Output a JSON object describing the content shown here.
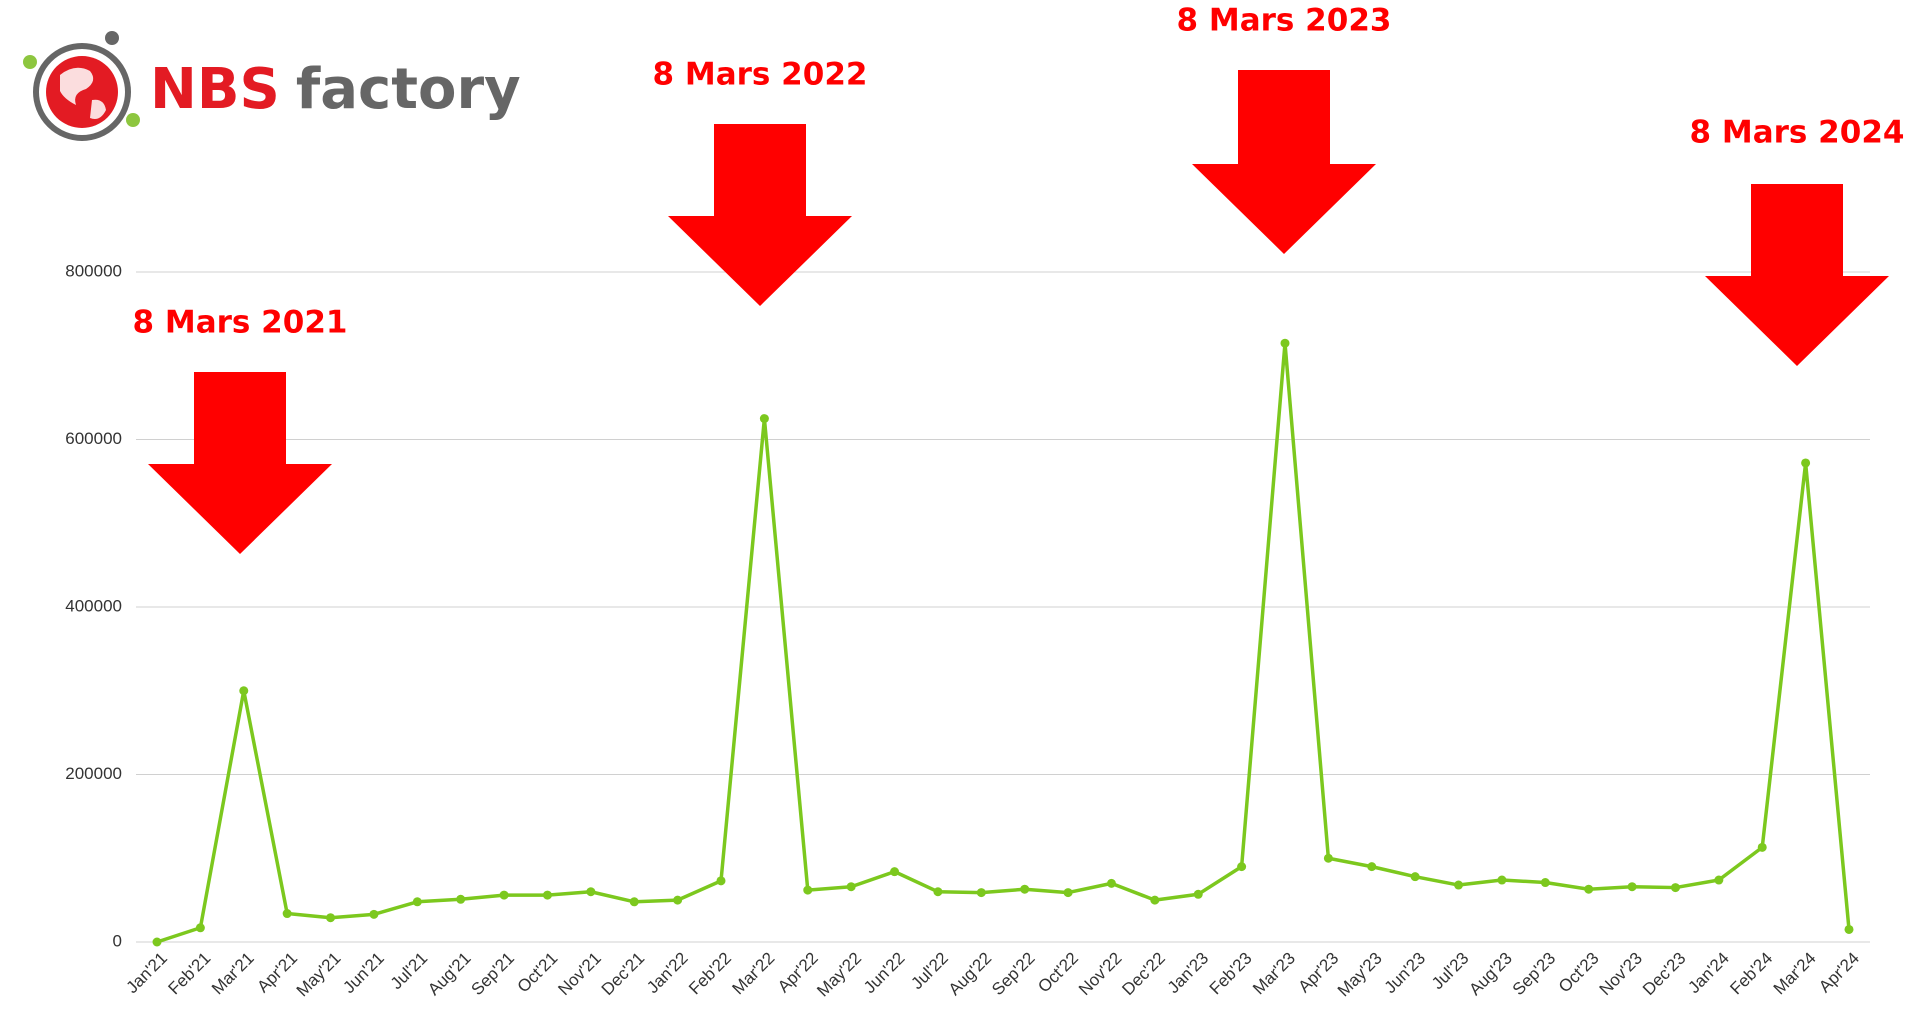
{
  "logo": {
    "brand": "NBS",
    "suffix": "factory"
  },
  "chart_data": {
    "type": "line",
    "categories": [
      "Jan'21",
      "Feb'21",
      "Mar'21",
      "Apr'21",
      "May'21",
      "Jun'21",
      "Jul'21",
      "Aug'21",
      "Sep'21",
      "Oct'21",
      "Nov'21",
      "Dec'21",
      "Jan'22",
      "Feb'22",
      "Mar'22",
      "Apr'22",
      "May'22",
      "Jun'22",
      "Jul'22",
      "Aug'22",
      "Sep'22",
      "Oct'22",
      "Nov'22",
      "Dec'22",
      "Jan'23",
      "Feb'23",
      "Mar'23",
      "Apr'23",
      "May'23",
      "Jun'23",
      "Jul'23",
      "Aug'23",
      "Sep'23",
      "Oct'23",
      "Nov'23",
      "Dec'23",
      "Jan'24",
      "Feb'24",
      "Mar'24",
      "Apr'24"
    ],
    "values": [
      0,
      17000,
      300000,
      34000,
      29000,
      33000,
      48000,
      51000,
      56000,
      56000,
      60000,
      48000,
      50000,
      73000,
      625000,
      62000,
      66000,
      84000,
      60000,
      59000,
      63000,
      59000,
      70000,
      50000,
      57000,
      90000,
      715000,
      100000,
      90000,
      78000,
      68000,
      74000,
      71000,
      63000,
      66000,
      65000,
      74000,
      113000,
      572000,
      15000
    ],
    "color": "#7cc81e",
    "ylim": [
      0,
      800000
    ],
    "yticks": [
      0,
      200000,
      400000,
      600000,
      800000
    ],
    "grid": true,
    "annotations": [
      "8 Mars 2021",
      "8 Mars 2022",
      "8 Mars 2023",
      "8 Mars 2024"
    ],
    "annotation_color": "#ff0000"
  }
}
